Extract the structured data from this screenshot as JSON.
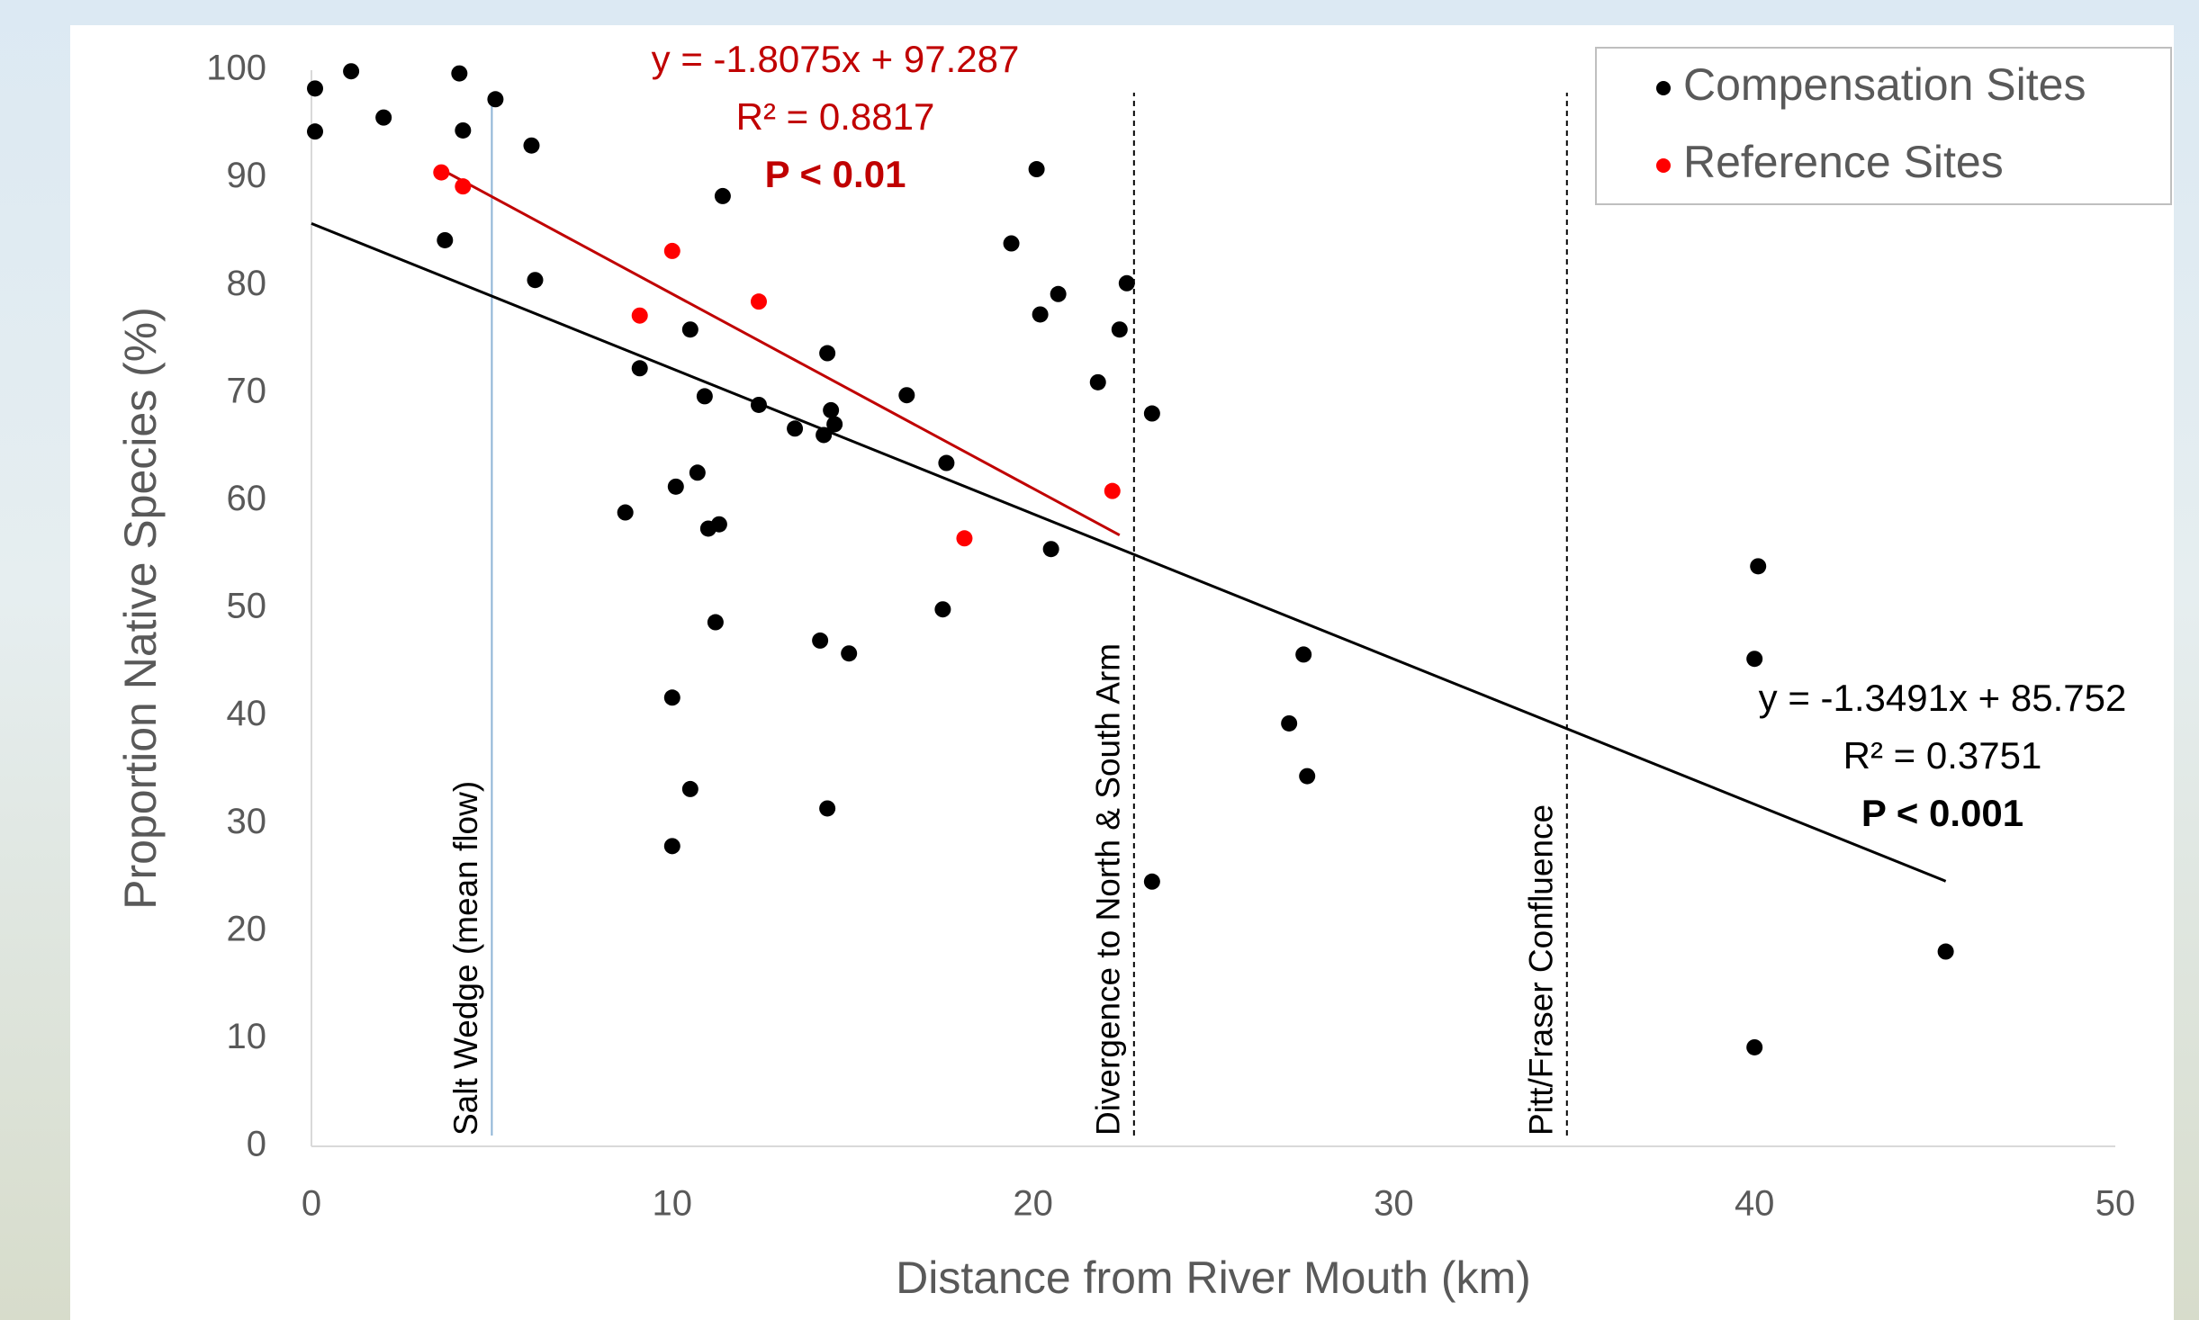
{
  "chart_data": {
    "type": "scatter",
    "x_label": "Distance from River Mouth (km)",
    "y_label": "Proportion Native Species (%)",
    "xlim": [
      0,
      50
    ],
    "xticks": [
      0,
      10,
      20,
      30,
      40,
      50
    ],
    "ylim": [
      0,
      100
    ],
    "yticks": [
      0,
      10,
      20,
      30,
      40,
      50,
      60,
      70,
      80,
      90,
      100
    ],
    "grid": false,
    "legend": "top-right",
    "series": [
      {
        "name": "Compensation Sites",
        "color": "#000000",
        "x": [
          0.1,
          0.1,
          1.1,
          2.0,
          4.1,
          4.2,
          5.1,
          6.1,
          3.7,
          6.2,
          11.4,
          9.1,
          10.5,
          10.9,
          12.4,
          13.4,
          14.2,
          14.3,
          14.4,
          14.5,
          16.5,
          17.6,
          8.7,
          10.1,
          10.7,
          11.0,
          11.3,
          11.2,
          14.1,
          14.9,
          17.5,
          10.0,
          10.5,
          10.0,
          14.3,
          19.4,
          20.1,
          20.2,
          20.7,
          22.6,
          22.4,
          21.8,
          23.3,
          20.5,
          23.3,
          27.5,
          27.1,
          27.6,
          40.1,
          40.0,
          40.0,
          45.3
        ],
        "values": [
          98.3,
          94.3,
          99.9,
          95.6,
          99.7,
          94.4,
          97.3,
          93.0,
          84.2,
          80.5,
          88.3,
          72.3,
          75.9,
          69.7,
          68.9,
          66.7,
          66.1,
          73.7,
          68.4,
          67.1,
          69.8,
          63.5,
          58.9,
          61.3,
          62.6,
          57.4,
          57.8,
          48.7,
          47.0,
          45.8,
          49.9,
          41.7,
          33.2,
          27.9,
          31.4,
          83.9,
          90.8,
          77.3,
          79.2,
          80.2,
          75.9,
          71.0,
          68.1,
          55.5,
          24.6,
          45.7,
          39.3,
          34.4,
          53.9,
          45.3,
          9.2,
          18.1
        ]
      },
      {
        "name": "Reference Sites",
        "color": "#ff0000",
        "x": [
          3.6,
          4.2,
          10.0,
          9.1,
          12.4,
          22.2,
          18.1
        ],
        "values": [
          90.5,
          89.2,
          83.2,
          77.2,
          78.5,
          60.9,
          56.5
        ]
      }
    ],
    "trendlines": [
      {
        "color": "#000000",
        "slope": -1.3491,
        "intercept": 85.752,
        "xrange": [
          0,
          45.3
        ],
        "equation": "y = -1.3491x + 85.752",
        "r2": "R² = 0.3751",
        "p": "P < 0.001"
      },
      {
        "color": "#c00000",
        "slope": -1.8075,
        "intercept": 97.287,
        "xrange": [
          3.6,
          22.4
        ],
        "equation": "y = -1.8075x + 97.287",
        "r2": "R² = 0.8817",
        "p": "P < 0.01"
      }
    ],
    "reference_lines": [
      {
        "x": 5.0,
        "label": "Salt Wedge (mean flow)",
        "style": "solid",
        "color": "#8eb4d6"
      },
      {
        "x": 22.8,
        "label": "Divergence to North & South Arm",
        "style": "dashed",
        "color": "#000000"
      },
      {
        "x": 34.8,
        "label": "Pitt/Fraser Confluence",
        "style": "dashed",
        "color": "#000000"
      }
    ]
  }
}
